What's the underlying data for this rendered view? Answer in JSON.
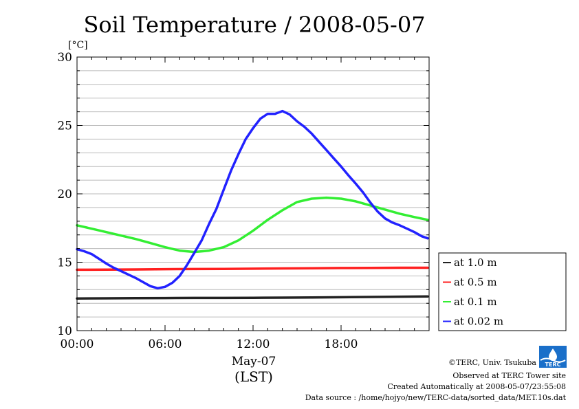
{
  "chart_data": {
    "type": "line",
    "title": "Soil Temperature / 2008-05-07",
    "y_unit": "[°C]",
    "ylim": [
      10,
      30
    ],
    "yticks": [
      10,
      15,
      20,
      25,
      30
    ],
    "xlim": [
      0,
      24
    ],
    "xticks": [
      0,
      6,
      12,
      18
    ],
    "xtick_labels": [
      "00:00",
      "06:00",
      "12:00",
      "18:00"
    ],
    "xlabel_date": "May-07",
    "xlabel_tz": "(LST)",
    "grid": "horizontal",
    "legend_position": "right",
    "series": [
      {
        "name": "at 1.0 m",
        "color": "#222222",
        "x": [
          0,
          2,
          4,
          6,
          8,
          10,
          12,
          14,
          16,
          18,
          20,
          22,
          23.9
        ],
        "y": [
          12.35,
          12.36,
          12.37,
          12.38,
          12.39,
          12.39,
          12.4,
          12.41,
          12.42,
          12.44,
          12.46,
          12.48,
          12.5
        ]
      },
      {
        "name": "at 0.5 m",
        "color": "#ff2020",
        "x": [
          0,
          2,
          4,
          6,
          8,
          10,
          12,
          14,
          16,
          18,
          20,
          22,
          23.9
        ],
        "y": [
          14.45,
          14.46,
          14.47,
          14.49,
          14.5,
          14.51,
          14.53,
          14.55,
          14.56,
          14.58,
          14.59,
          14.6,
          14.6
        ]
      },
      {
        "name": "at 0.1 m",
        "color": "#33ee33",
        "x": [
          0,
          1,
          2,
          3,
          4,
          5,
          6,
          7,
          8,
          9,
          10,
          11,
          12,
          13,
          14,
          15,
          16,
          17,
          18,
          19,
          20,
          21,
          22,
          23,
          23.9
        ],
        "y": [
          17.7,
          17.45,
          17.2,
          16.95,
          16.7,
          16.4,
          16.1,
          15.85,
          15.75,
          15.85,
          16.1,
          16.6,
          17.3,
          18.1,
          18.8,
          19.4,
          19.65,
          19.72,
          19.65,
          19.45,
          19.15,
          18.85,
          18.55,
          18.3,
          18.1
        ]
      },
      {
        "name": "at 0.02 m",
        "color": "#2222ff",
        "x": [
          0,
          0.5,
          1,
          1.5,
          2,
          2.5,
          3,
          3.5,
          4,
          4.5,
          5,
          5.5,
          6,
          6.5,
          7,
          7.5,
          8,
          8.5,
          9,
          9.5,
          10,
          10.5,
          11,
          11.5,
          12,
          12.5,
          13,
          13.5,
          14,
          14.5,
          15,
          15.5,
          16,
          16.5,
          17,
          17.5,
          18,
          18.5,
          19,
          19.5,
          20,
          20.5,
          21,
          21.5,
          22,
          22.5,
          23,
          23.5,
          23.9
        ],
        "y": [
          15.95,
          15.8,
          15.6,
          15.25,
          14.9,
          14.6,
          14.35,
          14.1,
          13.85,
          13.55,
          13.25,
          13.1,
          13.2,
          13.5,
          14.0,
          14.8,
          15.7,
          16.6,
          17.8,
          18.9,
          20.3,
          21.7,
          22.9,
          24.0,
          24.8,
          25.5,
          25.85,
          25.85,
          26.05,
          25.8,
          25.3,
          24.9,
          24.4,
          23.8,
          23.2,
          22.6,
          22.0,
          21.35,
          20.75,
          20.1,
          19.35,
          18.7,
          18.2,
          17.9,
          17.7,
          17.45,
          17.2,
          16.9,
          16.75
        ]
      }
    ]
  },
  "footer": {
    "copyright": "©TERC, Univ. Tsukuba",
    "observed": "Observed at TERC Tower site",
    "created": "Created Automatically at 2008-05-07/23:55:08",
    "source": "Data source : /home/hojyo/new/TERC-data/sorted_data/MET.10s.dat",
    "logo_text": "TERC",
    "logo_color": "#1a6fc9"
  }
}
